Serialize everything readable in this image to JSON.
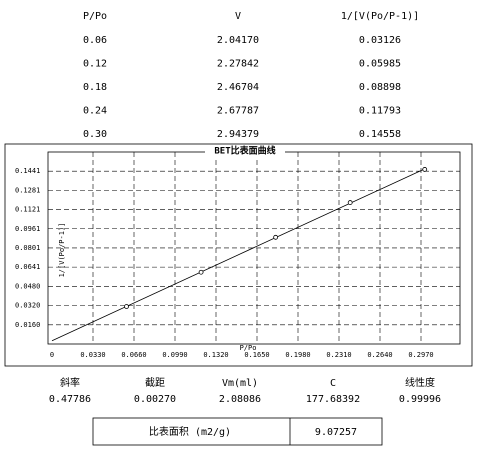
{
  "table": {
    "header": [
      "P/Po",
      "V",
      "1/[V(Po/P-1)]"
    ],
    "rows": [
      [
        "0.06",
        "2.04170",
        "0.03126"
      ],
      [
        "0.12",
        "2.27842",
        "0.05985"
      ],
      [
        "0.18",
        "2.46704",
        "0.08898"
      ],
      [
        "0.24",
        "2.67787",
        "0.11793"
      ],
      [
        "0.30",
        "2.94379",
        "0.14558"
      ]
    ]
  },
  "chart_data": {
    "type": "scatter",
    "title": "BET比表面曲线",
    "x_label": "P/Po",
    "y_label": "1/[V(Po/P-1)]",
    "x": [
      0.06,
      0.12,
      0.18,
      0.24,
      0.3
    ],
    "values": [
      0.03126,
      0.05985,
      0.08898,
      0.11793,
      0.14558
    ],
    "color": "#000000",
    "xlim": [
      0,
      0.33
    ],
    "ylim": [
      0,
      0.1601
    ],
    "xticks": [
      0,
      {
        "value": 0.033,
        "label": "0.0330"
      },
      {
        "value": 0.066,
        "label": "0.0660"
      },
      {
        "value": 0.099,
        "label": "0.0990"
      },
      {
        "value": 0.132,
        "label": "0.1320"
      },
      {
        "value": 0.165,
        "label": "0.1650"
      },
      {
        "value": 0.198,
        "label": "0.1980"
      },
      {
        "value": 0.231,
        "label": "0.2310"
      },
      {
        "value": 0.264,
        "label": "0.2640"
      },
      {
        "value": 0.297,
        "label": "0.2970"
      }
    ],
    "yticks": [
      {
        "value": 0.016,
        "label": "0.0160"
      },
      {
        "value": 0.032,
        "label": "0.0320"
      },
      {
        "value": 0.048,
        "label": "0.0480"
      },
      0.0641,
      0.0801,
      0.0961,
      0.1121,
      0.1281,
      0.1441
    ],
    "grid": true
  },
  "results": {
    "header": [
      "斜率",
      "截距",
      "Vm(ml)",
      "C",
      "线性度"
    ],
    "values": [
      "0.47786",
      "0.00270",
      "2.08086",
      "177.68392",
      "0.99996"
    ]
  },
  "surface_area": {
    "label": "比表面积 (m2/g)",
    "value": "9.07257"
  }
}
